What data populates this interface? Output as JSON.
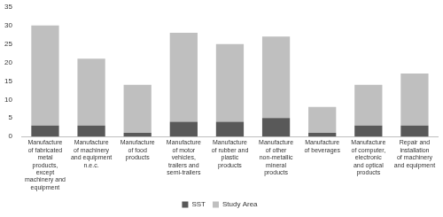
{
  "chart_data": {
    "type": "bar",
    "stacked": true,
    "grid": false,
    "legend": "bottom",
    "categories": [
      "Manufacture of fabricated metal products, except machinery and equipment",
      "Manufacture of machinery and equipment n.e.c.",
      "Manufacture of food products",
      "Manufacture of motor vehicles, trailers and semi-trailers",
      "Manufacture of rubber and plastic products",
      "Manufacture of other non-metallic mineral products",
      "Manufacture of beverages",
      "Manufacture of computer, electronic and optical products",
      "Repair and installation of machinery and equipment"
    ],
    "series": [
      {
        "name": "SST",
        "color": "#595959",
        "values": [
          3,
          3,
          1,
          4,
          4,
          5,
          1,
          3,
          3
        ]
      },
      {
        "name": "Study Area",
        "color": "#bfbfbf",
        "values": [
          27,
          18,
          13,
          24,
          21,
          22,
          7,
          11,
          14
        ]
      }
    ],
    "ylim": [
      0,
      35
    ],
    "yticks": [
      0,
      5,
      10,
      15,
      20,
      25,
      30,
      35
    ]
  }
}
